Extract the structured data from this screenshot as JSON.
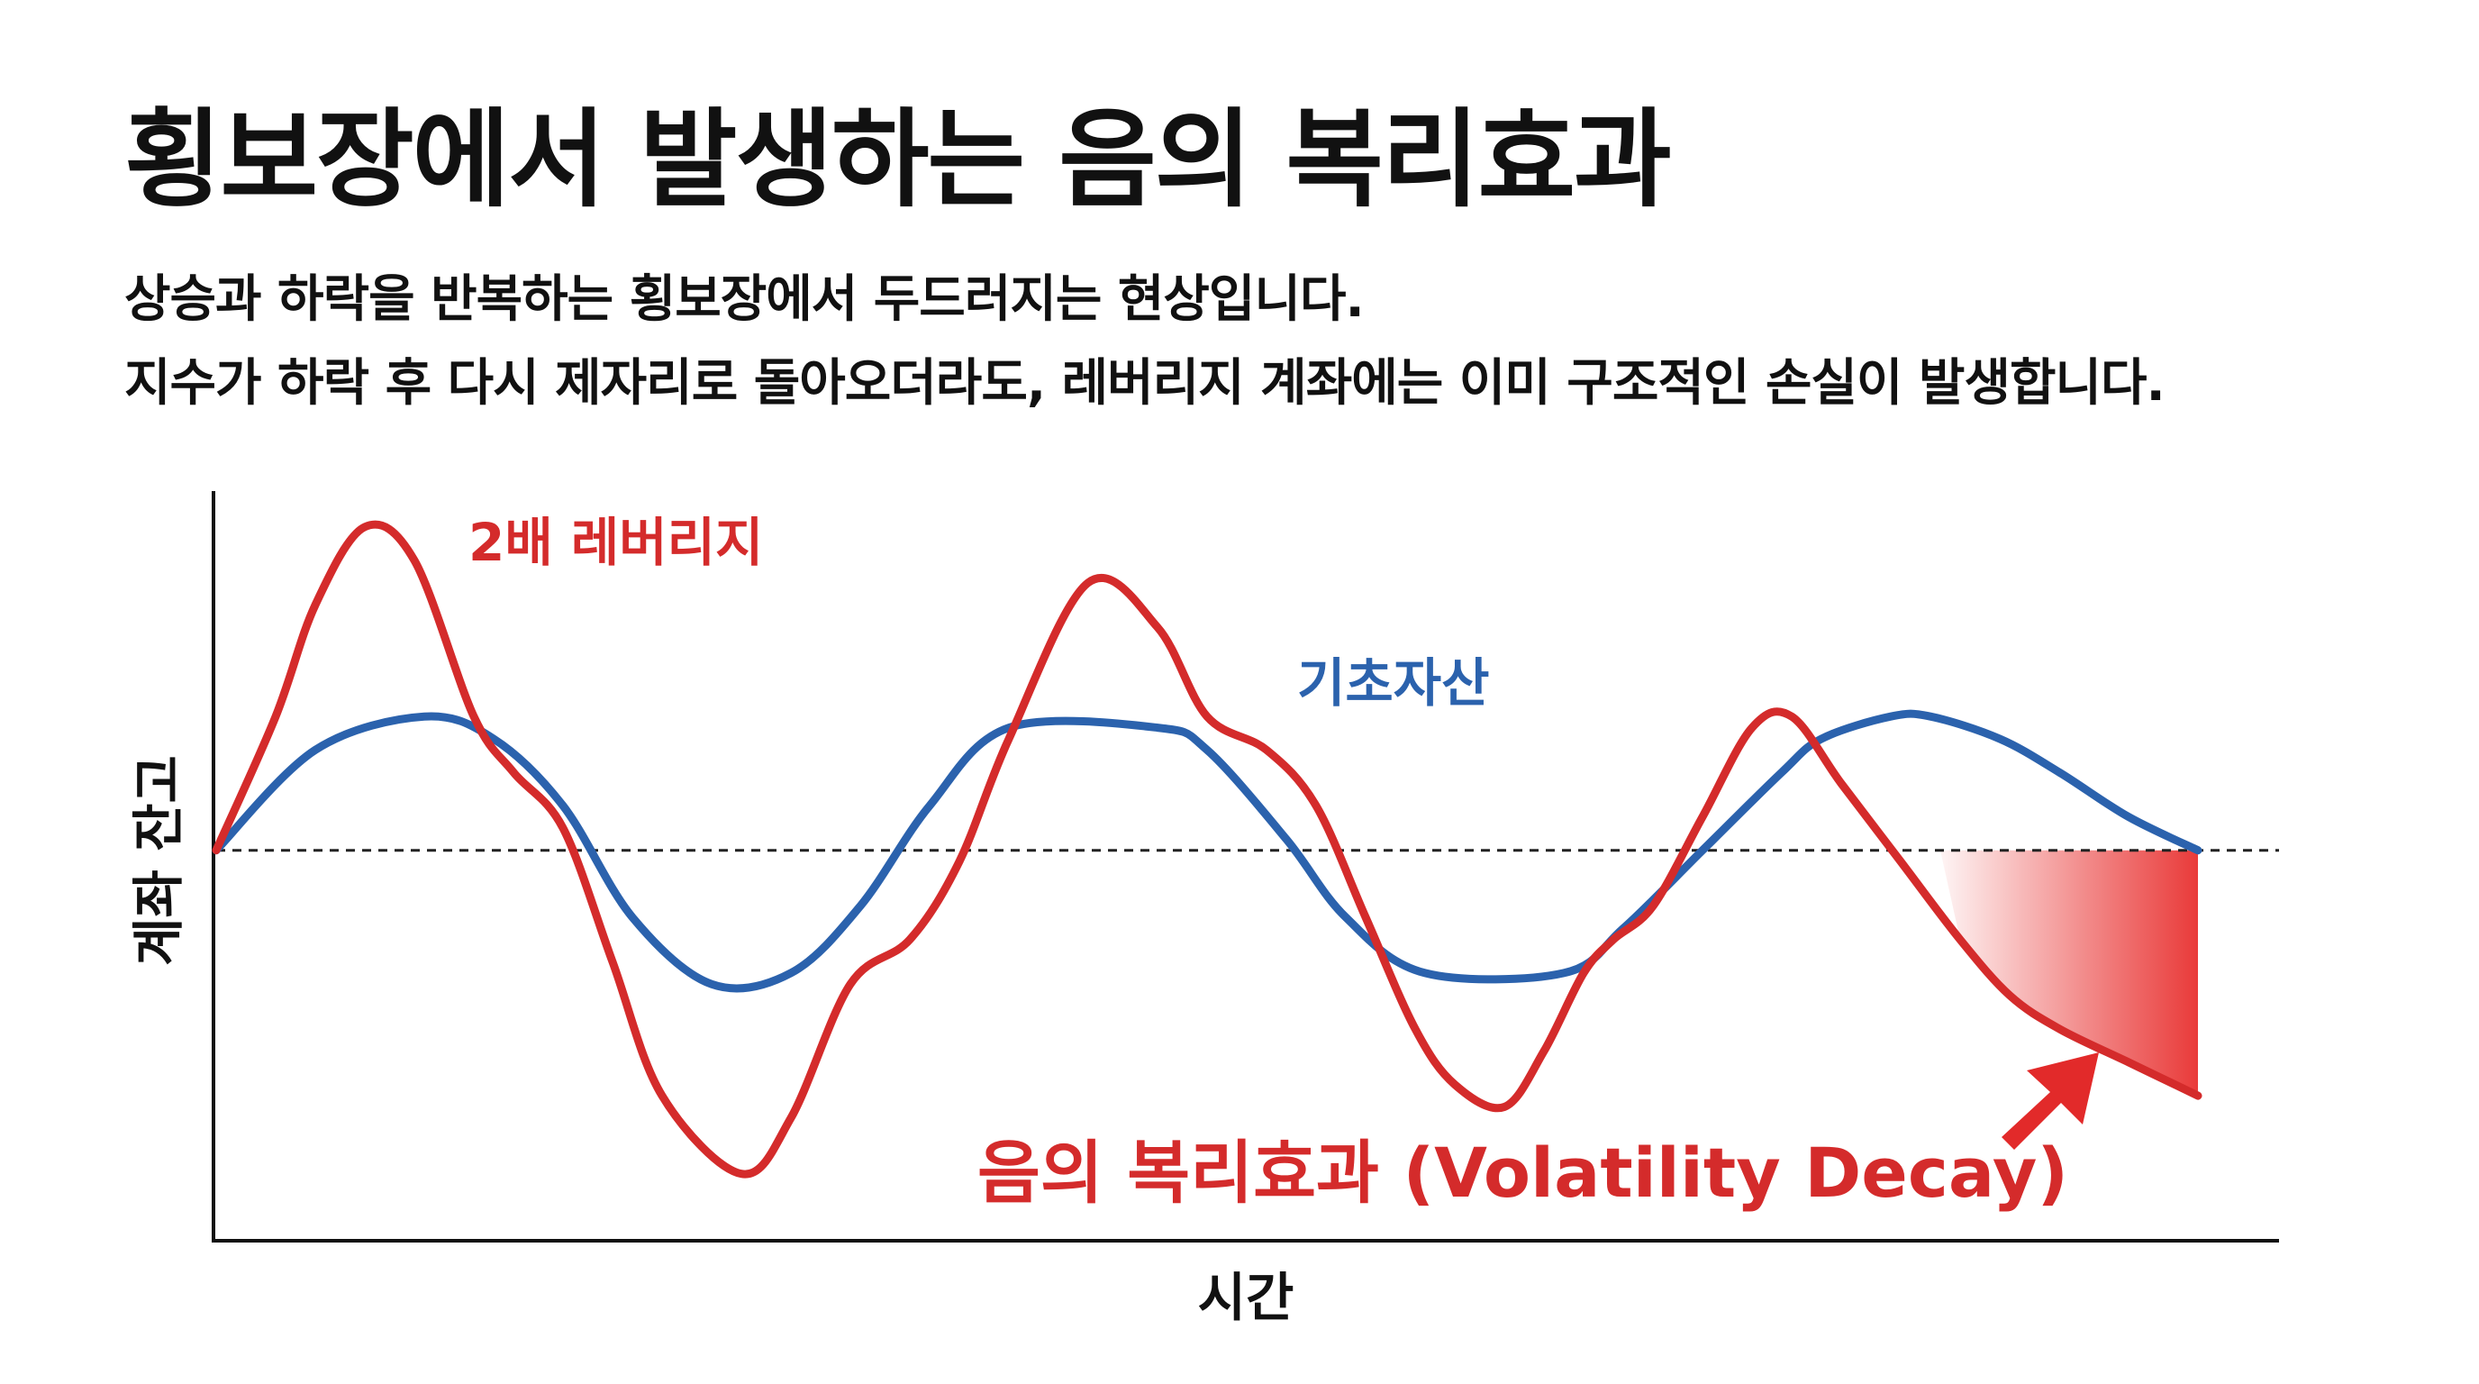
{
  "page": {
    "title": "횡보장에서 발생하는 음의 복리효과",
    "subtitle_lines": [
      "상승과 하락을 반복하는 횡보장에서 두드러지는 현상입니다.",
      "지수가 하락 후 다시 제자리로 돌아오더라도, 레버리지 계좌에는 이미 구조적인 손실이 발생합니다."
    ]
  },
  "colors": {
    "leverage": "#d42b2b",
    "underlying": "#2b62ad",
    "decay_fill": "#e8302f",
    "axis": "#111111",
    "baseline": "#222222"
  },
  "chart_data": {
    "type": "line",
    "title": "",
    "xlabel": "시간",
    "ylabel": "계좌 잔고",
    "grid": false,
    "baseline_y": 0,
    "xlim": [
      0,
      100
    ],
    "ylim": [
      -1.75,
      1.55
    ],
    "series": [
      {
        "name": "2배 레버리지",
        "color": "#d42b2b",
        "points": [
          [
            0,
            0
          ],
          [
            3,
            0.6
          ],
          [
            5,
            1.1
          ],
          [
            7.5,
            1.45
          ],
          [
            10,
            1.3
          ],
          [
            13,
            0.6
          ],
          [
            15,
            0.35
          ],
          [
            17.5,
            0.1
          ],
          [
            20,
            -0.5
          ],
          [
            22.5,
            -1.1
          ],
          [
            26.5,
            -1.45
          ],
          [
            29,
            -1.2
          ],
          [
            32,
            -0.6
          ],
          [
            35,
            -0.4
          ],
          [
            37.5,
            -0.05
          ],
          [
            40,
            0.5
          ],
          [
            44,
            1.2
          ],
          [
            47.5,
            1.0
          ],
          [
            50,
            0.6
          ],
          [
            53,
            0.45
          ],
          [
            55.5,
            0.2
          ],
          [
            58,
            -0.3
          ],
          [
            60.5,
            -0.8
          ],
          [
            62.5,
            -1.05
          ],
          [
            65,
            -1.15
          ],
          [
            67,
            -0.9
          ],
          [
            69,
            -0.55
          ],
          [
            70.5,
            -0.4
          ],
          [
            72.5,
            -0.25
          ],
          [
            75,
            0.15
          ],
          [
            77.5,
            0.55
          ],
          [
            79.5,
            0.6
          ],
          [
            82,
            0.3
          ],
          [
            85,
            -0.05
          ],
          [
            88,
            -0.4
          ],
          [
            90.5,
            -0.65
          ],
          [
            93,
            -0.8
          ],
          [
            96.5,
            -0.95
          ],
          [
            100,
            -1.1
          ]
        ]
      },
      {
        "name": "기초자산",
        "color": "#2b62ad",
        "points": [
          [
            0,
            0
          ],
          [
            5,
            0.45
          ],
          [
            10.5,
            0.6
          ],
          [
            14,
            0.5
          ],
          [
            17.5,
            0.2
          ],
          [
            21,
            -0.3
          ],
          [
            25,
            -0.6
          ],
          [
            29,
            -0.55
          ],
          [
            32.5,
            -0.25
          ],
          [
            36,
            0.2
          ],
          [
            40,
            0.55
          ],
          [
            47.5,
            0.55
          ],
          [
            50,
            0.45
          ],
          [
            54,
            0.05
          ],
          [
            57,
            -0.3
          ],
          [
            61,
            -0.55
          ],
          [
            68,
            -0.55
          ],
          [
            71,
            -0.35
          ],
          [
            75,
            0
          ],
          [
            79,
            0.35
          ],
          [
            81,
            0.5
          ],
          [
            84.5,
            0.6
          ],
          [
            86.5,
            0.6
          ],
          [
            90,
            0.5
          ],
          [
            93,
            0.35
          ],
          [
            96.5,
            0.15
          ],
          [
            100,
            0
          ]
        ]
      }
    ],
    "annotations": [
      {
        "text": "2배 레버리지",
        "target": "2배 레버리지"
      },
      {
        "text": "기초자산",
        "target": "기초자산"
      },
      {
        "text": "음의 복리효과 (Volatility Decay)",
        "target": "decay-region"
      }
    ],
    "decay_region_x": [
      87,
      100
    ]
  }
}
